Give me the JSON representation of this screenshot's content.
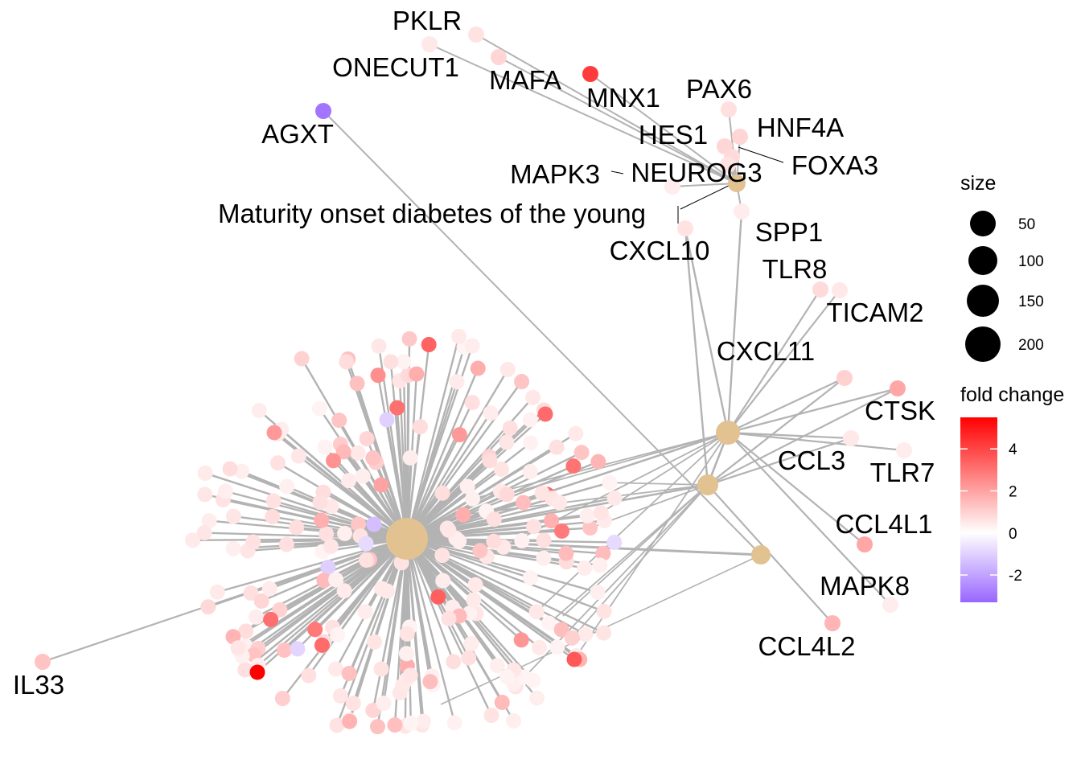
{
  "diagram": {
    "kind": "gene-concept network (cnetplot)",
    "edge_color": "#b3b3b3",
    "category_node_color": "#e2c290",
    "central_category_label": "Maturity onset diabetes of the young",
    "category_count": 5,
    "peripheral_gene_count": 230
  },
  "gene_labels": [
    {
      "text": "PKLR"
    },
    {
      "text": "ONECUT1"
    },
    {
      "text": "MAFA"
    },
    {
      "text": "MNX1"
    },
    {
      "text": "PAX6"
    },
    {
      "text": "AGXT"
    },
    {
      "text": "HES1"
    },
    {
      "text": "HNF4A"
    },
    {
      "text": "FOXA3"
    },
    {
      "text": "MAPK3"
    },
    {
      "text": "NEUROG3"
    },
    {
      "text": "Maturity onset diabetes of the young"
    },
    {
      "text": "SPP1"
    },
    {
      "text": "CXCL10"
    },
    {
      "text": "TLR8"
    },
    {
      "text": "TICAM2"
    },
    {
      "text": "CXCL11"
    },
    {
      "text": "CTSK"
    },
    {
      "text": "CCL3"
    },
    {
      "text": "TLR7"
    },
    {
      "text": "CCL4L1"
    },
    {
      "text": "MAPK8"
    },
    {
      "text": "CCL4L2"
    },
    {
      "text": "IL33"
    }
  ],
  "gene_fold_change": {
    "PKLR": 0.6,
    "ONECUT1": 0.5,
    "MAFA": 0.9,
    "MNX1": 4.2,
    "PAX6": 0.7,
    "AGXT": -3.0,
    "HES1": 0.9,
    "HNF4A": 0.9,
    "FOXA3": 0.8,
    "MAPK3": 0.4,
    "NEUROG3": 0.6,
    "SPP1": 0.4,
    "CXCL10": 0.6,
    "TLR8": 0.8,
    "TICAM2": 0.5,
    "CXCL11": 1.0,
    "CTSK": 1.9,
    "CCL3": 0.5,
    "TLR7": 0.4,
    "CCL4L1": 1.9,
    "MAPK8": 0.4,
    "CCL4L2": 1.6,
    "IL33": 1.3
  },
  "legend": {
    "size": {
      "title": "size",
      "items": [
        {
          "label": "50"
        },
        {
          "label": "100"
        },
        {
          "label": "150"
        },
        {
          "label": "200"
        }
      ]
    },
    "fold_change": {
      "title": "fold change",
      "ticks": [
        {
          "label": "4",
          "value": 4
        },
        {
          "label": "2",
          "value": 2
        },
        {
          "label": "0",
          "value": 0
        },
        {
          "label": "-2",
          "value": -2
        }
      ],
      "range": [
        -3.3,
        5.5
      ],
      "colors": {
        "low": "#9966ff",
        "mid": "#ffffff",
        "high": "#ff0000"
      }
    }
  }
}
